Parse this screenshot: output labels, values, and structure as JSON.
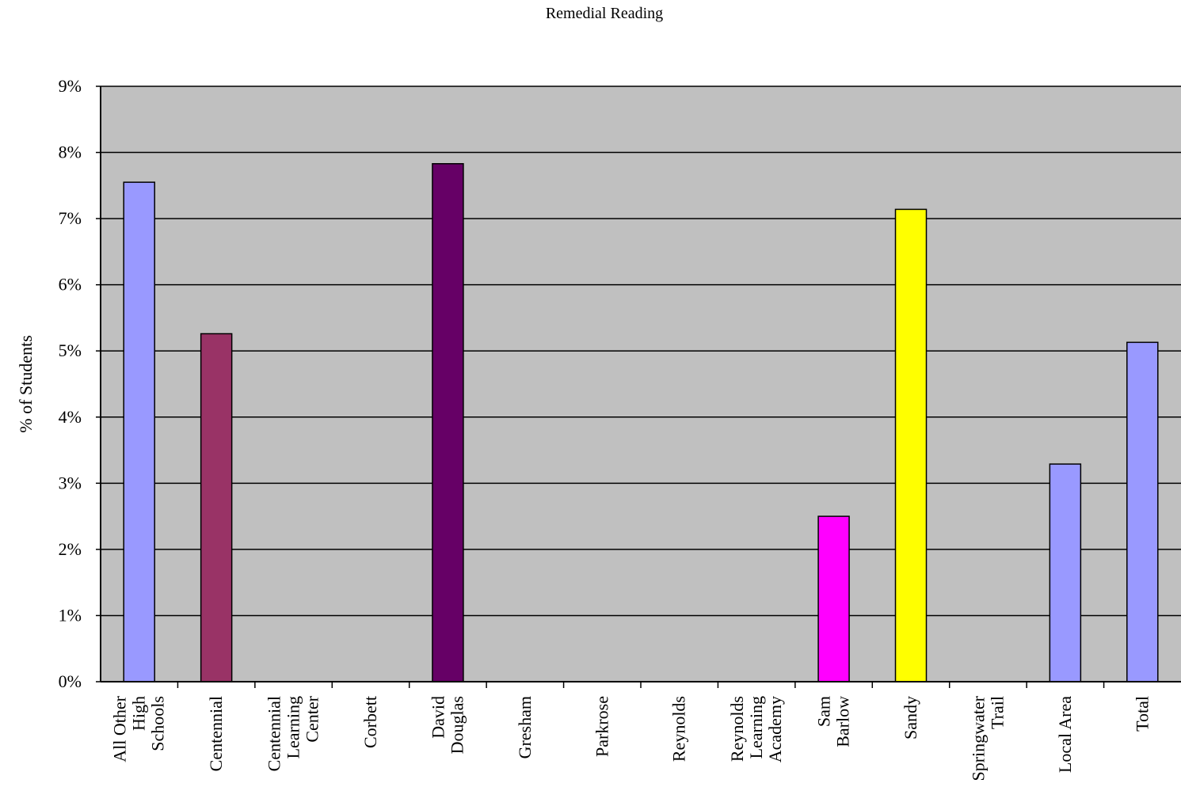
{
  "chart_data": {
    "type": "bar",
    "title": "Remedial Reading",
    "ylabel": "% of Students",
    "xlabel": "",
    "ylim": [
      0,
      9
    ],
    "yticks": [
      "0%",
      "1%",
      "2%",
      "3%",
      "4%",
      "5%",
      "6%",
      "7%",
      "8%",
      "9%"
    ],
    "grid": true,
    "plot_background": "#c0c0c0",
    "categories": [
      [
        "All Other",
        "High",
        "Schools"
      ],
      [
        "Centennial"
      ],
      [
        "Centennial",
        "Learning",
        "Center"
      ],
      [
        "Corbett"
      ],
      [
        "David",
        "Douglas"
      ],
      [
        "Gresham"
      ],
      [
        "Parkrose"
      ],
      [
        "Reynolds"
      ],
      [
        "Reynolds",
        "Learning",
        "Academy"
      ],
      [
        "Sam",
        "Barlow"
      ],
      [
        "Sandy"
      ],
      [
        "Springwater",
        "Trail"
      ],
      [
        "Local Area"
      ],
      [
        "Total"
      ]
    ],
    "values": [
      7.55,
      5.26,
      0,
      0,
      7.83,
      0,
      0,
      0,
      0,
      2.5,
      7.14,
      0,
      3.29,
      5.13
    ],
    "colors": [
      "#9999ff",
      "#993366",
      "#9999ff",
      "#9999ff",
      "#660066",
      "#9999ff",
      "#9999ff",
      "#9999ff",
      "#9999ff",
      "#ff00ff",
      "#ffff00",
      "#9999ff",
      "#9999ff",
      "#9999ff"
    ]
  }
}
